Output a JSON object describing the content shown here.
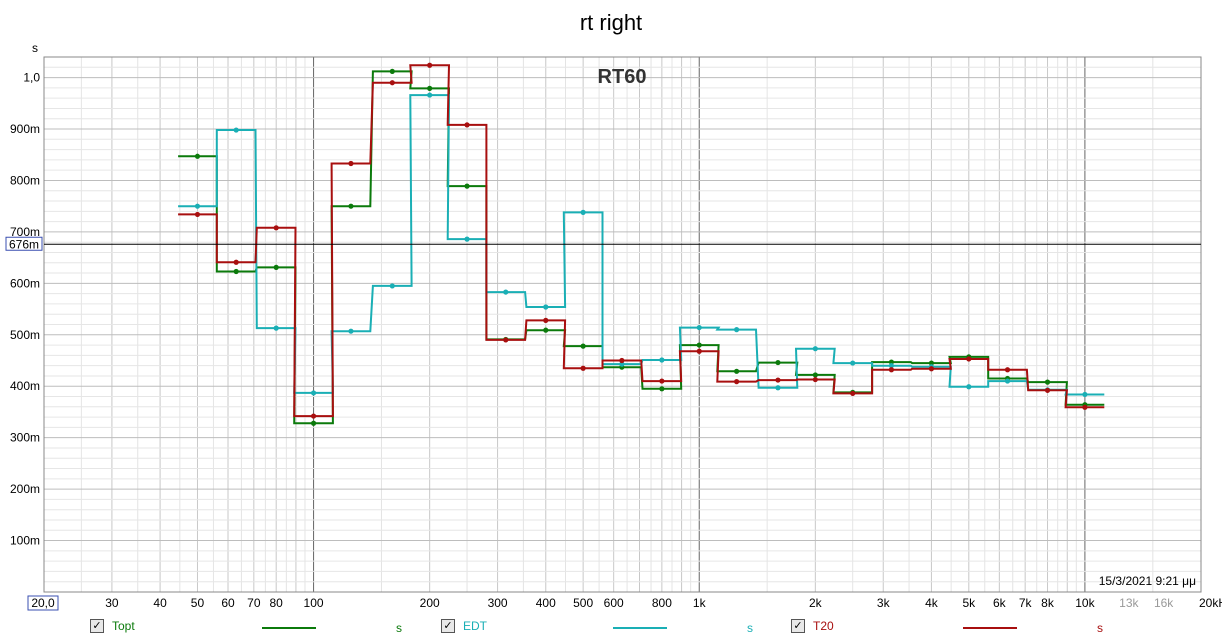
{
  "chart_data": {
    "type": "line",
    "title": "rt right",
    "inner_title": "RT60",
    "ylabel": "s",
    "xscale": "log",
    "xlim": [
      20,
      20000
    ],
    "ylim": [
      0,
      1.04
    ],
    "cursor": {
      "value": 0.676,
      "label": "676m"
    },
    "x_origin_label": "20,0",
    "timestamp": "15/3/2021 9:21 μμ",
    "yticks": [
      {
        "v": 0.1,
        "label": "100m"
      },
      {
        "v": 0.2,
        "label": "200m"
      },
      {
        "v": 0.3,
        "label": "300m"
      },
      {
        "v": 0.4,
        "label": "400m"
      },
      {
        "v": 0.5,
        "label": "500m"
      },
      {
        "v": 0.6,
        "label": "600m"
      },
      {
        "v": 0.7,
        "label": "700m"
      },
      {
        "v": 0.8,
        "label": "800m"
      },
      {
        "v": 0.9,
        "label": "900m"
      },
      {
        "v": 1.0,
        "label": "1,0"
      }
    ],
    "xticks": [
      {
        "v": 30,
        "label": "30"
      },
      {
        "v": 40,
        "label": "40"
      },
      {
        "v": 50,
        "label": "50"
      },
      {
        "v": 60,
        "label": "60"
      },
      {
        "v": 70,
        "label": "70"
      },
      {
        "v": 80,
        "label": "80"
      },
      {
        "v": 100,
        "label": "100"
      },
      {
        "v": 200,
        "label": "200"
      },
      {
        "v": 300,
        "label": "300"
      },
      {
        "v": 400,
        "label": "400"
      },
      {
        "v": 500,
        "label": "500"
      },
      {
        "v": 600,
        "label": "600"
      },
      {
        "v": 800,
        "label": "800"
      },
      {
        "v": 1000,
        "label": "1k"
      },
      {
        "v": 2000,
        "label": "2k"
      },
      {
        "v": 3000,
        "label": "3k"
      },
      {
        "v": 4000,
        "label": "4k"
      },
      {
        "v": 5000,
        "label": "5k"
      },
      {
        "v": 6000,
        "label": "6k"
      },
      {
        "v": 7000,
        "label": "7k"
      },
      {
        "v": 8000,
        "label": "8k"
      },
      {
        "v": 10000,
        "label": "10k"
      },
      {
        "v": 13000,
        "label": "13k",
        "grey": true
      },
      {
        "v": 16000,
        "label": "16k",
        "grey": true
      },
      {
        "v": 20000,
        "label": "20kHz"
      }
    ],
    "bands": [
      50,
      63,
      80,
      100,
      125,
      160,
      200,
      250,
      315,
      400,
      500,
      630,
      800,
      1000,
      1250,
      1600,
      2000,
      2500,
      3150,
      4000,
      5000,
      6300,
      8000,
      10000
    ],
    "series": [
      {
        "name": "Topt",
        "unit": "s",
        "color": "#0b7a0b",
        "values": [
          0.847,
          0.623,
          0.631,
          0.328,
          0.75,
          1.012,
          0.979,
          0.789,
          0.491,
          0.509,
          0.478,
          0.437,
          0.395,
          0.48,
          0.429,
          0.446,
          0.422,
          0.388,
          0.447,
          0.445,
          0.457,
          0.415,
          0.408,
          0.364
        ]
      },
      {
        "name": "EDT",
        "unit": "s",
        "color": "#1aafb5",
        "values": [
          0.75,
          0.898,
          0.513,
          0.387,
          0.507,
          0.595,
          0.966,
          0.686,
          0.583,
          0.554,
          0.738,
          0.443,
          0.451,
          0.514,
          0.51,
          0.397,
          0.473,
          0.445,
          0.44,
          0.438,
          0.399,
          0.41,
          0.393,
          0.384
        ]
      },
      {
        "name": "T20",
        "unit": "s",
        "color": "#a80f0f",
        "values": [
          0.734,
          0.641,
          0.708,
          0.342,
          0.833,
          0.99,
          1.024,
          0.908,
          0.49,
          0.528,
          0.435,
          0.45,
          0.41,
          0.468,
          0.409,
          0.412,
          0.413,
          0.386,
          0.432,
          0.434,
          0.453,
          0.432,
          0.392,
          0.359
        ]
      }
    ]
  }
}
